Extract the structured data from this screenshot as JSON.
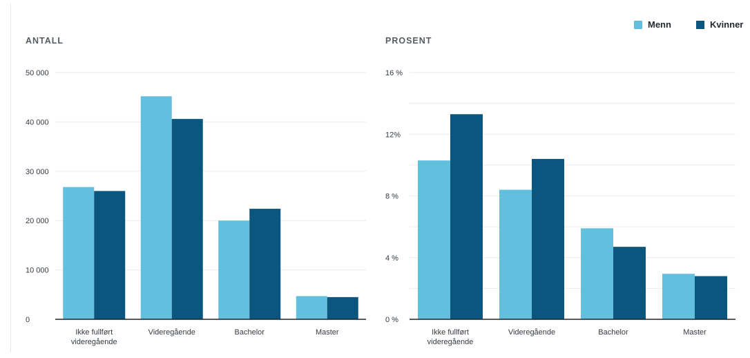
{
  "legend": {
    "items": [
      {
        "label": "Menn",
        "color": "#62bfde"
      },
      {
        "label": "Kvinner",
        "color": "#0b567f"
      }
    ]
  },
  "chart_data": [
    {
      "type": "bar",
      "title": "ANTALL",
      "categories": [
        [
          "Ikke fullført",
          "videregående"
        ],
        [
          "Videregående"
        ],
        [
          "Bachelor"
        ],
        [
          "Master"
        ]
      ],
      "series": [
        {
          "name": "Menn",
          "color": "#62bfde",
          "values": [
            26800,
            45200,
            20000,
            4700
          ]
        },
        {
          "name": "Kvinner",
          "color": "#0b567f",
          "values": [
            26000,
            40600,
            22400,
            4500
          ]
        }
      ],
      "yticks": [
        0,
        10000,
        20000,
        30000,
        40000,
        50000
      ],
      "ytick_labels": [
        "0",
        "10 000",
        "20 000",
        "30 000",
        "40 000",
        "50 000"
      ],
      "ylim": [
        0,
        50000
      ],
      "grid": true,
      "legend": "top-right"
    },
    {
      "type": "bar",
      "title": "PROSENT",
      "categories": [
        [
          "Ikke fullført",
          "videregående"
        ],
        [
          "Videregående"
        ],
        [
          "Bachelor"
        ],
        [
          "Master"
        ]
      ],
      "series": [
        {
          "name": "Menn",
          "color": "#62bfde",
          "values": [
            10.3,
            8.4,
            5.9,
            2.95
          ]
        },
        {
          "name": "Kvinner",
          "color": "#0b567f",
          "values": [
            13.3,
            10.4,
            4.7,
            2.8
          ]
        }
      ],
      "yticks": [
        0,
        2,
        4,
        6,
        8,
        10,
        12,
        14,
        16
      ],
      "ytick_labels": [
        "0 %",
        "",
        "4 %",
        "",
        "8 %",
        "",
        "12%",
        "",
        "16 %"
      ],
      "ylim": [
        0,
        16
      ],
      "grid": true,
      "legend": "top-right"
    }
  ]
}
